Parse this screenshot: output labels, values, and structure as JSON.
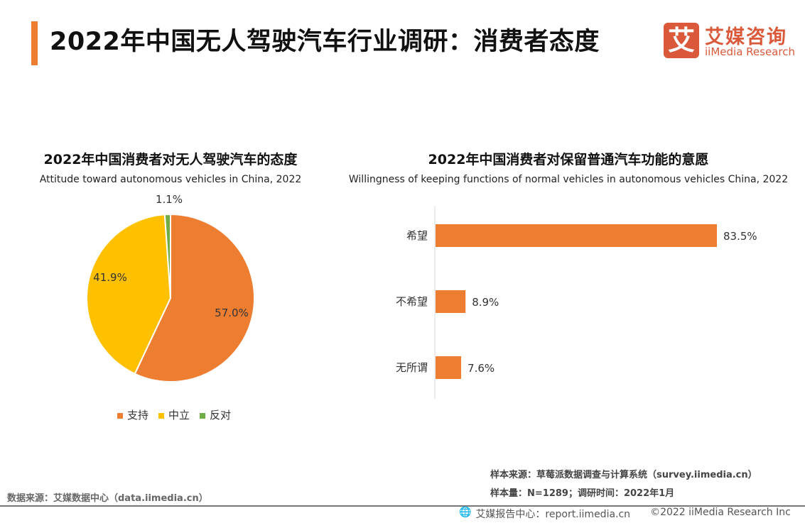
{
  "header": {
    "title": "2022年中国无人驾驶汽车行业调研：消费者态度",
    "logo_mark": "艾",
    "logo_cn": "艾媒咨询",
    "logo_en": "iiMedia Research"
  },
  "colors": {
    "accent": "#ed7d31",
    "orange": "#ed7d31",
    "yellow": "#ffc000",
    "green": "#70ad47",
    "logo": "#d9593a"
  },
  "chart_data": [
    {
      "type": "pie",
      "title": "2022年中国消费者对无人驾驶汽车的态度",
      "subtitle": "Attitude toward autonomous vehicles in China, 2022",
      "categories": [
        "支持",
        "中立",
        "反对"
      ],
      "values": [
        57.0,
        41.9,
        1.1
      ],
      "labels": [
        "57.0%",
        "41.9%",
        "1.1%"
      ],
      "colors": [
        "#ed7d31",
        "#ffc000",
        "#70ad47"
      ],
      "legend": "bottom"
    },
    {
      "type": "bar",
      "orientation": "horizontal",
      "title": "2022年中国消费者对保留普通汽车功能的意愿",
      "subtitle": "Willingness of keeping functions of normal vehicles in autonomous vehicles China, 2022",
      "categories": [
        "希望",
        "不希望",
        "无所谓"
      ],
      "values": [
        83.5,
        8.9,
        7.6
      ],
      "labels": [
        "83.5%",
        "8.9%",
        "7.6%"
      ],
      "color": "#ed7d31",
      "xlim": [
        0,
        100
      ]
    }
  ],
  "footer": {
    "data_source": "数据来源：艾媒数据中心（data.iimedia.cn）",
    "sample_source": "样本来源：草莓派数据调查与计算系统（survey.iimedia.cn）",
    "sample_size": "样本量：N=1289；调研时间：2022年1月",
    "report_center": "艾媒报告中心：report.iimedia.cn",
    "copyright": "©2022  iiMedia Research  Inc"
  }
}
